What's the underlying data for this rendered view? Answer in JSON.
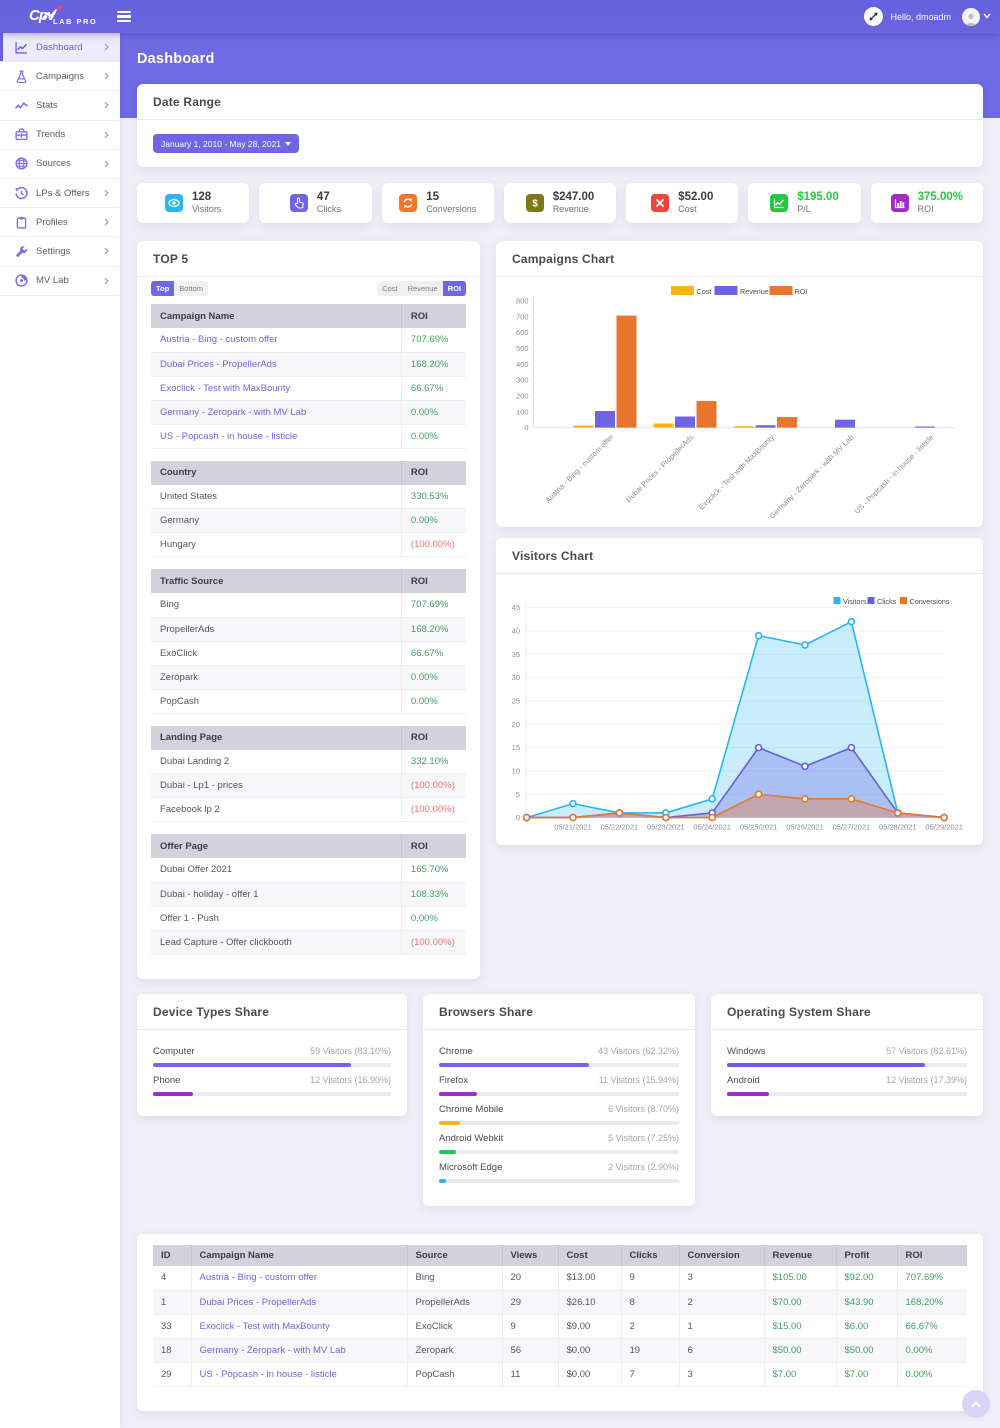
{
  "header": {
    "brand_script": "Cpv",
    "brand_text": "LAB PRO",
    "greeting": "Hello, dmoadm"
  },
  "sidebar": {
    "items": [
      {
        "label": "Dashboard",
        "icon": "chart-line-icon",
        "active": true
      },
      {
        "label": "Campaigns",
        "icon": "flask-icon",
        "active": false
      },
      {
        "label": "Stats",
        "icon": "pulse-icon",
        "active": false
      },
      {
        "label": "Trends",
        "icon": "briefcase-icon",
        "active": false
      },
      {
        "label": "Sources",
        "icon": "globe-icon",
        "active": false
      },
      {
        "label": "LPs & Offers",
        "icon": "history-icon",
        "active": false
      },
      {
        "label": "Profiles",
        "icon": "clipboard-icon",
        "active": false
      },
      {
        "label": "Settings",
        "icon": "wrench-icon",
        "active": false
      },
      {
        "label": "MV Lab",
        "icon": "disc-icon",
        "active": false
      }
    ]
  },
  "page": {
    "title": "Dashboard"
  },
  "date_range": {
    "title": "Date Range",
    "button_label": "January 1, 2010 - May 28, 2021"
  },
  "stats": [
    {
      "value": "128",
      "label": "Visitors",
      "icon": "eye-icon",
      "icon_bg": "#29b6f6",
      "value_color": "#3c3c44"
    },
    {
      "value": "47",
      "label": "Clicks",
      "icon": "hand-pointer-icon",
      "icon_bg": "#6f63e8",
      "value_color": "#3c3c44"
    },
    {
      "value": "15",
      "label": "Conversions",
      "icon": "sync-icon",
      "icon_bg": "#f4752c",
      "value_color": "#3c3c44"
    },
    {
      "value": "$247.00",
      "label": "Revenue",
      "icon": "dollar-icon",
      "icon_bg": "#7d7a1a",
      "value_color": "#3c3c44"
    },
    {
      "value": "$52.00",
      "label": "Cost",
      "icon": "times-icon",
      "icon_bg": "#f4433a",
      "value_color": "#3c3c44"
    },
    {
      "value": "$195.00",
      "label": "P/L",
      "icon": "chart-up-icon",
      "icon_bg": "#1dcb3e",
      "value_color": "#2bc940"
    },
    {
      "value": "375.00%",
      "label": "ROI",
      "icon": "bar-chart-icon",
      "icon_bg": "#a32cc4",
      "value_color": "#2bc940"
    }
  ],
  "top5": {
    "title": "TOP 5",
    "toggle_buttons": [
      {
        "label": "Top",
        "active": true
      },
      {
        "label": "Bottom",
        "active": false
      }
    ],
    "metric_buttons": [
      {
        "label": "Cost",
        "active": false
      },
      {
        "label": "Revenue",
        "active": false
      },
      {
        "label": "ROI",
        "active": true
      }
    ],
    "tables": [
      {
        "name_header": "Campaign Name",
        "value_header": "ROI",
        "links": true,
        "rows": [
          {
            "name": "Austria - Bing - custom offer",
            "value": "707.69%",
            "negative": false
          },
          {
            "name": "Dubai Prices - PropellerAds",
            "value": "168.20%",
            "negative": false
          },
          {
            "name": "Exoclick - Test with MaxBounty",
            "value": "66.67%",
            "negative": false
          },
          {
            "name": "Germany - Zeropark - with MV Lab",
            "value": "0.00%",
            "negative": false
          },
          {
            "name": "US - Popcash - in house - listicle",
            "value": "0.00%",
            "negative": false
          }
        ]
      },
      {
        "name_header": "Country",
        "value_header": "ROI",
        "links": false,
        "rows": [
          {
            "name": "United States",
            "value": "330.53%",
            "negative": false
          },
          {
            "name": "Germany",
            "value": "0.00%",
            "negative": false
          },
          {
            "name": "Hungary",
            "value": "(100.00%)",
            "negative": true
          }
        ]
      },
      {
        "name_header": "Traffic Source",
        "value_header": "ROI",
        "links": false,
        "rows": [
          {
            "name": "Bing",
            "value": "707.69%",
            "negative": false
          },
          {
            "name": "PropellerAds",
            "value": "168.20%",
            "negative": false
          },
          {
            "name": "ExoClick",
            "value": "66.67%",
            "negative": false
          },
          {
            "name": "Zeropark",
            "value": "0.00%",
            "negative": false
          },
          {
            "name": "PopCash",
            "value": "0.00%",
            "negative": false
          }
        ]
      },
      {
        "name_header": "Landing Page",
        "value_header": "ROI",
        "links": false,
        "rows": [
          {
            "name": "Dubai Landing 2",
            "value": "332.10%",
            "negative": false
          },
          {
            "name": "Dubai - Lp1 - prices",
            "value": "(100.00%)",
            "negative": true
          },
          {
            "name": "Facebook lp 2",
            "value": "(100.00%)",
            "negative": true
          }
        ]
      },
      {
        "name_header": "Offer Page",
        "value_header": "ROI",
        "links": false,
        "rows": [
          {
            "name": "Dubai Offer 2021",
            "value": "165.70%",
            "negative": false
          },
          {
            "name": "Dubai - holiday - offer 1",
            "value": "108.33%",
            "negative": false
          },
          {
            "name": "Offer 1 - Push",
            "value": "0.00%",
            "negative": false
          },
          {
            "name": "Lead Capture - Offer clickbooth",
            "value": "(100.00%)",
            "negative": true
          }
        ]
      }
    ]
  },
  "chart_data": [
    {
      "type": "bar",
      "title": "Campaigns Chart",
      "categories": [
        "Austria - Bing - custom offer",
        "Dubai Prices - PropellerAds",
        "Exoclick - Test with MaxBounty",
        "Germany - Zeropark - with MV Lab",
        "US - Popcash - in house - listicle"
      ],
      "series": [
        {
          "name": "Cost",
          "color": "#fcb410",
          "values": [
            13,
            26.1,
            9,
            0,
            0
          ]
        },
        {
          "name": "Revenue",
          "color": "#6f63e8",
          "values": [
            105,
            70,
            15,
            50,
            7
          ]
        },
        {
          "name": "ROI",
          "color": "#e8772e",
          "values": [
            707.69,
            168.2,
            66.67,
            0,
            0
          ]
        }
      ],
      "ylim": [
        0,
        800
      ],
      "ytick_step": 100,
      "legend_position": "top",
      "grid": false
    },
    {
      "type": "area",
      "title": "Visitors Chart",
      "x": [
        "",
        "05/21/2021",
        "05/22/2021",
        "05/23/2021",
        "05/24/2021",
        "05/25/2021",
        "05/26/2021",
        "05/27/2021",
        "05/28/2021",
        "05/29/2021"
      ],
      "series": [
        {
          "name": "Visitors",
          "color": "#29b6f6",
          "fill_opacity": 0.25,
          "values": [
            0,
            3,
            1,
            1,
            4,
            39,
            37,
            42,
            1,
            0
          ]
        },
        {
          "name": "Clicks",
          "color": "#685ee0",
          "fill_opacity": 0.3,
          "values": [
            0,
            0,
            1,
            0,
            1,
            15,
            11,
            15,
            1,
            0
          ]
        },
        {
          "name": "Conversions",
          "color": "#e8772e",
          "fill_opacity": 0.35,
          "values": [
            0,
            0,
            1,
            0,
            0,
            5,
            4,
            4,
            1,
            0
          ]
        }
      ],
      "ylim": [
        0,
        45
      ],
      "ytick_step": 5,
      "legend_position": "top-right",
      "grid": true
    }
  ],
  "shares": [
    {
      "title": "Device Types Share",
      "rows": [
        {
          "label": "Computer",
          "value_text": "59 Visitors (83.10%)",
          "pct": 83.1,
          "color": "#7166e8"
        },
        {
          "label": "Phone",
          "value_text": "12 Visitors (16.90%)",
          "pct": 16.9,
          "color": "#a22ec8"
        }
      ]
    },
    {
      "title": "Browsers Share",
      "rows": [
        {
          "label": "Chrome",
          "value_text": "43 Visitors (62.32%)",
          "pct": 62.32,
          "color": "#7166e8"
        },
        {
          "label": "Firefox",
          "value_text": "11 Visitors (15.94%)",
          "pct": 15.94,
          "color": "#a22ec8"
        },
        {
          "label": "Chrome Mobile",
          "value_text": "6 Visitors (8.70%)",
          "pct": 8.7,
          "color": "#fcb410"
        },
        {
          "label": "Android Webkit",
          "value_text": "5 Visitors (7.25%)",
          "pct": 7.25,
          "color": "#22c55e"
        },
        {
          "label": "Microsoft Edge",
          "value_text": "2 Visitors (2.90%)",
          "pct": 2.9,
          "color": "#29b6f6"
        }
      ]
    },
    {
      "title": "Operating System Share",
      "rows": [
        {
          "label": "Windows",
          "value_text": "57 Visitors (82.61%)",
          "pct": 82.61,
          "color": "#6b5fee"
        },
        {
          "label": "Android",
          "value_text": "12 Visitors (17.39%)",
          "pct": 17.39,
          "color": "#a22ec8"
        }
      ]
    }
  ],
  "campaign_table": {
    "columns": [
      "ID",
      "Campaign Name",
      "Source",
      "Views",
      "Cost",
      "Clicks",
      "Conversion",
      "Revenue",
      "Profit",
      "ROI"
    ],
    "rows": [
      {
        "id": "4",
        "name": "Austria - Bing - custom offer",
        "source": "Bing",
        "views": "20",
        "cost": "$13.00",
        "clicks": "9",
        "conversion": "3",
        "revenue": "$105.00",
        "profit": "$92.00",
        "roi": "707.69%"
      },
      {
        "id": "1",
        "name": "Dubai Prices - PropellerAds",
        "source": "PropellerAds",
        "views": "29",
        "cost": "$26.10",
        "clicks": "8",
        "conversion": "2",
        "revenue": "$70.00",
        "profit": "$43.90",
        "roi": "168.20%"
      },
      {
        "id": "33",
        "name": "Exoclick - Test with MaxBounty",
        "source": "ExoClick",
        "views": "9",
        "cost": "$9.00",
        "clicks": "2",
        "conversion": "1",
        "revenue": "$15.00",
        "profit": "$6.00",
        "roi": "66.67%"
      },
      {
        "id": "18",
        "name": "Germany - Zeropark - with MV Lab",
        "source": "Zeropark",
        "views": "56",
        "cost": "$0.00",
        "clicks": "19",
        "conversion": "6",
        "revenue": "$50.00",
        "profit": "$50.00",
        "roi": "0.00%"
      },
      {
        "id": "29",
        "name": "US - Popcash - in house - listicle",
        "source": "PopCash",
        "views": "11",
        "cost": "$0.00",
        "clicks": "7",
        "conversion": "3",
        "revenue": "$7.00",
        "profit": "$7.00",
        "roi": "0.00%"
      }
    ]
  }
}
